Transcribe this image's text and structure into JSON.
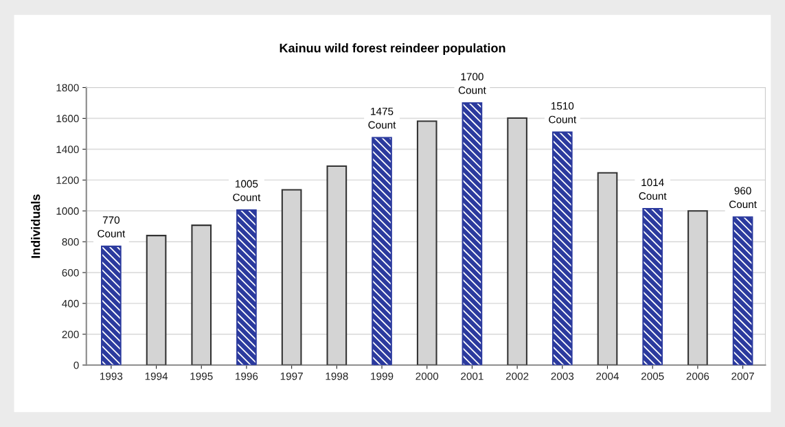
{
  "chart_data": {
    "type": "bar",
    "title": "Kainuu wild forest reindeer population",
    "ylabel": "Individuals",
    "categories": [
      "1993",
      "1994",
      "1995",
      "1996",
      "1997",
      "1998",
      "1999",
      "2000",
      "2001",
      "2002",
      "2003",
      "2004",
      "2005",
      "2006",
      "2007"
    ],
    "series": [
      {
        "name": "Count",
        "color": "#2b3a9e",
        "values": [
          770,
          null,
          null,
          1005,
          null,
          null,
          1475,
          null,
          1700,
          null,
          1510,
          null,
          1014,
          null,
          960
        ],
        "value_labels": [
          "770",
          null,
          null,
          "1005",
          null,
          null,
          "1475",
          null,
          "1700",
          null,
          "1510",
          null,
          "1014",
          null,
          "960"
        ]
      },
      {
        "color": "#d4d4d4",
        "values": [
          null,
          840,
          907,
          null,
          1137,
          1290,
          null,
          1582,
          null,
          1602,
          null,
          1247,
          null,
          1000,
          null
        ]
      }
    ],
    "ylim": [
      0,
      1800
    ],
    "yticks": [
      0,
      200,
      400,
      600,
      800,
      1000,
      1200,
      1400,
      1600,
      1800
    ],
    "grid": "y"
  }
}
